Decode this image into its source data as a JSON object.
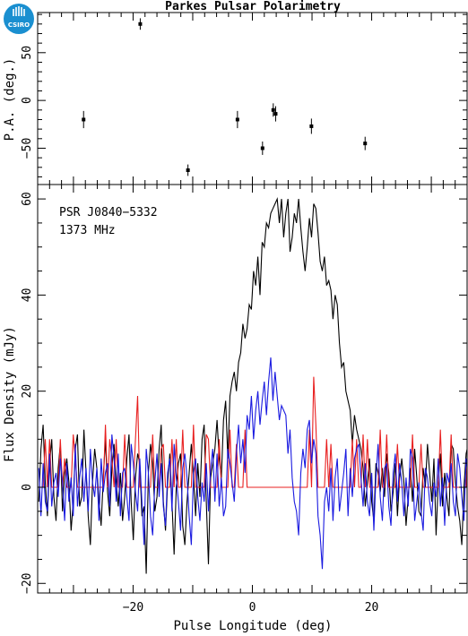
{
  "title": "Parkes Pulsar Polarimetry",
  "logo": {
    "text": "CSIRO",
    "color": "#1a8fd0"
  },
  "chart_data": [
    {
      "type": "scatter",
      "ylabel": "P.A. (deg.)",
      "xlim": [
        -36,
        36
      ],
      "ylim": [
        -88,
        92
      ],
      "yticks": [
        -50,
        0,
        50
      ],
      "points": [
        {
          "x": -28.3,
          "y": -20,
          "err": 9
        },
        {
          "x": -18.8,
          "y": 80,
          "err": 6
        },
        {
          "x": -10.8,
          "y": -73,
          "err": 6
        },
        {
          "x": -2.5,
          "y": -20,
          "err": 9
        },
        {
          "x": 1.7,
          "y": -50,
          "err": 7
        },
        {
          "x": 3.5,
          "y": -10,
          "err": 7
        },
        {
          "x": 3.9,
          "y": -14,
          "err": 8
        },
        {
          "x": 9.9,
          "y": -27,
          "err": 8
        },
        {
          "x": 18.9,
          "y": -45,
          "err": 7
        }
      ]
    },
    {
      "type": "line",
      "xlabel": "Pulse Longitude (deg)",
      "ylabel": "Flux Density (mJy)",
      "annotations": [
        "PSR J0840−5332",
        "1373 MHz"
      ],
      "xlim": [
        -36,
        36
      ],
      "ylim": [
        -22,
        63
      ],
      "xticks": [
        -20,
        0,
        20
      ],
      "yticks": [
        -20,
        0,
        20,
        40,
        60
      ],
      "x_start": -35.8,
      "x_step": 0.36,
      "series": [
        {
          "color": "#000000",
          "values": [
            -3,
            8,
            13,
            1,
            -6,
            5,
            10,
            -2,
            -7,
            4,
            9,
            -5,
            3,
            6,
            1,
            -9,
            -3,
            8,
            11,
            -4,
            -2,
            12,
            3,
            -6,
            -12,
            1,
            8,
            4,
            -3,
            -8,
            2,
            10,
            -1,
            -6,
            4,
            9,
            1,
            -4,
            3,
            -7,
            -2,
            6,
            11,
            -3,
            -11,
            2,
            7,
            5,
            -6,
            -4,
            -18,
            3,
            9,
            5,
            -5,
            -2,
            8,
            13,
            -3,
            -9,
            1,
            7,
            -3,
            -14,
            0,
            5,
            7,
            -8,
            -12,
            -3,
            3,
            9,
            2,
            -6,
            5,
            -2,
            10,
            13,
            -3,
            -16,
            2,
            5,
            8,
            14,
            6,
            2,
            14,
            18,
            6,
            19,
            22,
            24,
            20,
            26,
            28,
            34,
            31,
            33,
            38,
            37,
            45,
            42,
            48,
            40,
            51,
            50,
            55,
            54,
            57,
            58,
            59,
            60,
            55,
            60,
            52,
            57,
            60,
            49,
            52,
            57,
            55,
            60,
            54,
            49,
            45,
            50,
            56,
            52,
            59,
            58,
            53,
            47,
            45,
            48,
            42,
            43,
            41,
            35,
            40,
            38,
            30,
            25,
            26,
            20,
            18,
            16,
            9,
            15,
            12,
            10,
            8,
            4,
            -4,
            1,
            6,
            -3,
            -7,
            5,
            3,
            -1,
            4,
            -2,
            7,
            3,
            -5,
            -1,
            5,
            -6,
            2,
            6,
            1,
            -8,
            -2,
            4,
            -3,
            8,
            2,
            -5,
            -6,
            4,
            0,
            9,
            3,
            -3,
            6,
            -10,
            1,
            7,
            -4,
            3,
            -2,
            -6,
            9,
            8,
            1,
            -4,
            -7,
            -12,
            0,
            7,
            9,
            -3,
            2,
            -5,
            4,
            -9,
            -2,
            1,
            -7,
            6,
            9,
            1,
            7,
            -2,
            -5,
            -8,
            3,
            5,
            9,
            11,
            2,
            -4,
            8,
            3,
            -5,
            -7,
            0,
            2,
            6,
            12,
            -6,
            4,
            -3,
            0,
            6,
            -7,
            4
          ]
        },
        {
          "color": "#e82020",
          "values": [
            0,
            0,
            0,
            10,
            0,
            10,
            0,
            0,
            0,
            0,
            10,
            0,
            6,
            0,
            0,
            0,
            11,
            6,
            0,
            0,
            0,
            0,
            0,
            0,
            0,
            0,
            0,
            0,
            0,
            0,
            0,
            13,
            0,
            10,
            6,
            0,
            10,
            0,
            0,
            0,
            11,
            0,
            0,
            0,
            0,
            10,
            19,
            0,
            0,
            0,
            0,
            0,
            0,
            11,
            0,
            0,
            0,
            8,
            9,
            0,
            0,
            0,
            10,
            0,
            10,
            0,
            0,
            12,
            0,
            0,
            0,
            0,
            13,
            0,
            0,
            0,
            0,
            0,
            11,
            10,
            0,
            0,
            0,
            0,
            10,
            0,
            0,
            0,
            0,
            12,
            0,
            0,
            9,
            0,
            0,
            0,
            12,
            0,
            0,
            0,
            0,
            0,
            0,
            0,
            0,
            0,
            0,
            0,
            0,
            0,
            0,
            0,
            0,
            0,
            0,
            0,
            0,
            0,
            0,
            0,
            0,
            0,
            0,
            0,
            0,
            0,
            12,
            0,
            23,
            13,
            0,
            0,
            0,
            0,
            10,
            0,
            9,
            0,
            0,
            0,
            0,
            0,
            0,
            0,
            0,
            0,
            10,
            0,
            10,
            0,
            0,
            11,
            0,
            10,
            0,
            0,
            0,
            0,
            0,
            12,
            0,
            0,
            11,
            0,
            0,
            0,
            0,
            9,
            0,
            0,
            0,
            0,
            0,
            0,
            11,
            0,
            0,
            0,
            9,
            0,
            0,
            0,
            0,
            0,
            0,
            0,
            0,
            12,
            0,
            0,
            0,
            0,
            11,
            0,
            0,
            0,
            0,
            0,
            0,
            0,
            12,
            0,
            0,
            0,
            0,
            12,
            0,
            0,
            0,
            0,
            0,
            0,
            0,
            18,
            0,
            10,
            0,
            0,
            8,
            0,
            0,
            0,
            13,
            0,
            0,
            0,
            10,
            0,
            0,
            0,
            10,
            0,
            0,
            0,
            0,
            0,
            0,
            9,
            0,
            0
          ]
        },
        {
          "color": "#1a1ae0",
          "values": [
            4,
            -6,
            5,
            -3,
            -5,
            7,
            -4,
            1,
            3,
            -2,
            6,
            1,
            -7,
            5,
            -3,
            2,
            -6,
            9,
            -4,
            2,
            6,
            -3,
            4,
            -5,
            8,
            1,
            -2,
            4,
            -7,
            6,
            -1,
            3,
            5,
            -4,
            11,
            6,
            -3,
            7,
            -6,
            3,
            4,
            -2,
            -7,
            9,
            5,
            -1,
            -5,
            6,
            -3,
            -12,
            8,
            3,
            -6,
            -10,
            1,
            7,
            -2,
            5,
            -4,
            -8,
            3,
            6,
            -5,
            9,
            2,
            -3,
            -9,
            4,
            7,
            2,
            -6,
            -12,
            3,
            6,
            -2,
            -7,
            1,
            -3,
            5,
            -5,
            4,
            8,
            -3,
            7,
            -4,
            2,
            -6,
            -4,
            8,
            5,
            1,
            -3,
            7,
            13,
            5,
            10,
            3,
            15,
            12,
            19,
            10,
            16,
            20,
            13,
            18,
            22,
            15,
            22,
            27,
            18,
            24,
            19,
            14,
            17,
            16,
            15,
            7,
            12,
            2,
            -3,
            -5,
            -10,
            3,
            8,
            4,
            12,
            14,
            5,
            10,
            7,
            -6,
            -10,
            -17,
            -3,
            0,
            -5,
            4,
            -7,
            2,
            6,
            -5,
            -1,
            3,
            8,
            -6,
            4,
            -2,
            6,
            8,
            9,
            2,
            -4,
            5,
            -3,
            -6,
            3,
            -9,
            2,
            9,
            -2,
            -7,
            4,
            5,
            -4,
            -8,
            3,
            7,
            -3,
            5,
            1,
            -6,
            2,
            -4,
            8,
            6,
            -7,
            -3,
            1,
            -5,
            -9,
            4,
            2,
            -3,
            -6,
            1,
            -2,
            6,
            -4,
            2,
            -8,
            3,
            1,
            5,
            -3,
            -6,
            7,
            4,
            -2,
            -7,
            6,
            2,
            5,
            -4,
            3,
            -6,
            8,
            -3,
            -5,
            7,
            -2,
            4,
            -7,
            6,
            5,
            -3,
            -11,
            9,
            2,
            -5,
            14,
            8,
            -2,
            19,
            11,
            4,
            -3,
            6,
            -4,
            -1,
            5,
            -6,
            9,
            2,
            -4,
            11,
            -3,
            -7,
            -3,
            8,
            5,
            -5
          ]
        }
      ]
    }
  ]
}
